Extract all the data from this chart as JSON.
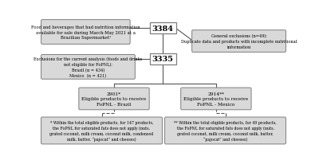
{
  "bg_color": "#ffffff",
  "box_fill": "#d9d9d9",
  "box_edge": "#7f7f7f",
  "num_fill": "#ffffff",
  "num_edge": "#7f7f7f",
  "top_box_text": "Food and beverages that had nutrition information\navailable for sale during March-May 2021 at a\nBrazilian Supermarket¹",
  "num1_text": "3384",
  "excl_right_text": "General exclusions (n=49):\nDuplicate data and products with incomplete nutritional\ninformation",
  "num2_text": "3335",
  "excl_left_text": "Exclusions for the current analysis (foods and drinks\nnot eligible for FoPNL):\nBrazil (n = 434)\nMexico  (n = 421)",
  "brazil_box_text": "2901*\nEligible products to receive\nFoPNL - Brazil",
  "mexico_box_text": "2914**\nEligible products to receive\nFoPNL - Mexico",
  "note1_text": "* Within the total eligible products, for 147 products,\nthe FoPNL for saturated fats does not apply (nuts,\ngrated coconut, milk cream, coconut milk, condensed\nmilk, butter, “pajocat” and cheeses)",
  "note2_text": "** Within the total eligible products, for 49 products,\nthe FoPNL for saturated fats does not apply (nuts,\ngrated coconut, milk cream, coconut milk, butter,\n“pajocat” and cheeses)"
}
